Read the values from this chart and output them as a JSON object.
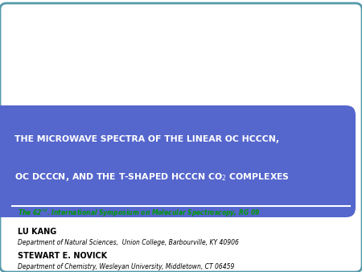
{
  "title_line1": "THE MICROWAVE SPECTRA OF THE LINEAR OC HCCCN,",
  "title_line2": "OC DCCCN, AND THE T-SHAPED HCCCN CO$_2$ COMPLEXES",
  "header_bg_color": "#5566cc",
  "header_text_color": "#ffffff",
  "symposium_line": "The 62$^{nd}$. International Symposium on Molecular Spectroscopy, RG 09",
  "symposium_color": "#009900",
  "author1_name": "LU KANG",
  "author1_dept": "Department of Natural Sciences,  Union College, Barbourville, KY 40906",
  "author2_name": "STEWART E. NOVICK",
  "author2_dept": "Department of Chemistry, Wesleyan University, Middletown, CT 06459",
  "bg_color": "#ffffff",
  "border_color": "#5599aa",
  "separator_color": "#ffffff",
  "title_fontsize": 7.8,
  "author_name_fontsize": 7.0,
  "author_dept_fontsize": 5.5,
  "symp_fontsize": 5.5
}
